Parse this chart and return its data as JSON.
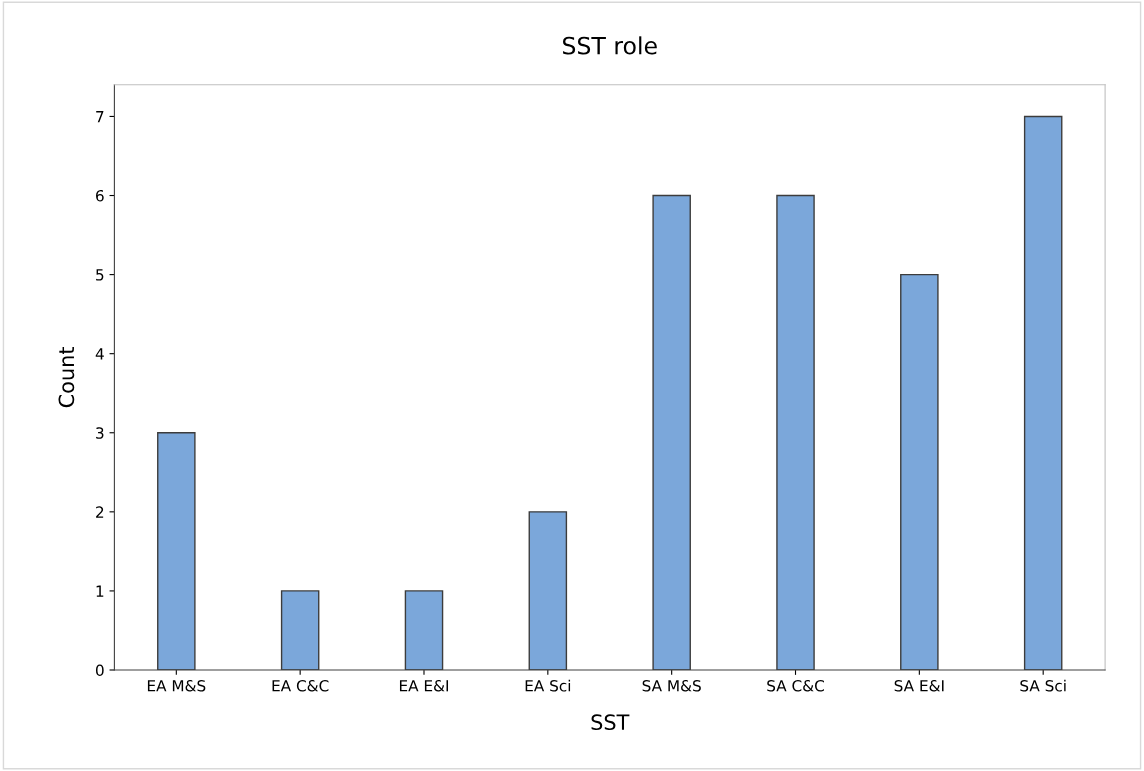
{
  "chart_data": {
    "type": "bar",
    "title": "SST role",
    "xlabel": "SST",
    "ylabel": "Count",
    "categories": [
      "EA M&S",
      "EA C&C",
      "EA E&I",
      "EA Sci",
      "SA M&S",
      "SA C&C",
      "SA E&I",
      "SA Sci"
    ],
    "values": [
      3,
      1,
      1,
      2,
      6,
      6,
      5,
      7
    ],
    "color": "#7ba7da",
    "ylim": [
      0,
      7.4
    ],
    "yticks": [
      0,
      1,
      2,
      3,
      4,
      5,
      6,
      7
    ],
    "grid": false,
    "legend": false
  }
}
